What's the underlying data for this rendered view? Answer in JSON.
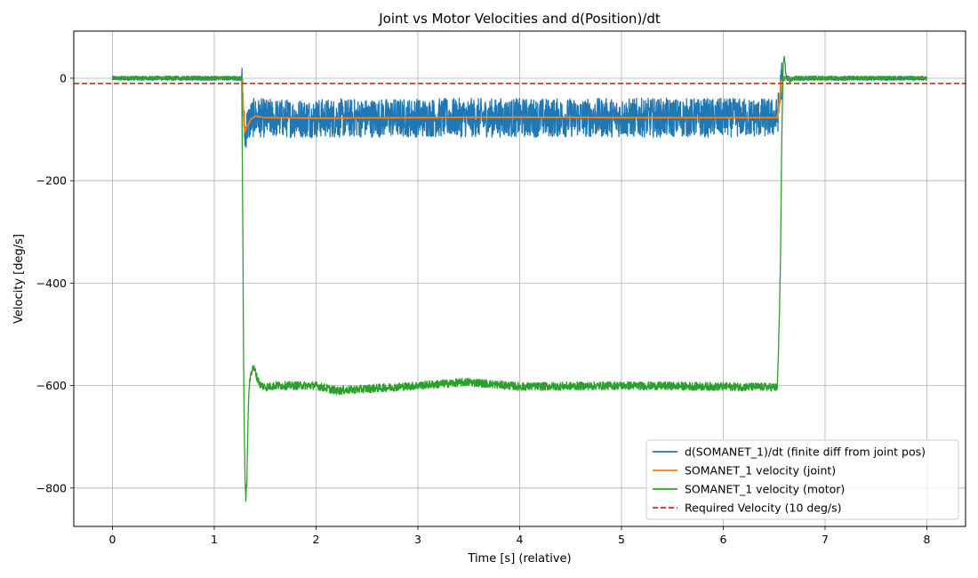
{
  "chart_data": {
    "type": "line",
    "title": "Joint vs Motor Velocities and d(Position)/dt",
    "xlabel": "Time [s] (relative)",
    "ylabel": "Velocity [deg/s]",
    "xlim": [
      -0.38,
      8.38
    ],
    "ylim": [
      -875,
      92
    ],
    "xticks": [
      0,
      1,
      2,
      3,
      4,
      5,
      6,
      7,
      8
    ],
    "yticks": [
      0,
      -200,
      -400,
      -600,
      -800
    ],
    "xtick_labels": [
      "0",
      "1",
      "2",
      "3",
      "4",
      "5",
      "6",
      "7",
      "8"
    ],
    "ytick_labels": [
      "0",
      "−200",
      "−400",
      "−600",
      "−800"
    ],
    "grid": true,
    "legend_position": "lower-right",
    "series": [
      {
        "name": "d(SOMANET_1)/dt (finite diff from joint pos)",
        "color": "#1f77b4",
        "style": "solid",
        "noise_band": 38,
        "x": [
          0.0,
          1.27,
          1.28,
          1.29,
          1.3,
          1.31,
          1.33,
          1.36,
          1.4,
          1.5,
          2.0,
          3.0,
          4.0,
          5.0,
          6.0,
          6.53,
          6.55,
          6.57,
          6.6,
          6.7,
          7.0,
          8.0
        ],
        "y": [
          0,
          0,
          -40,
          -80,
          -110,
          -100,
          -90,
          -80,
          -76,
          -78,
          -78,
          -77,
          -77,
          -77,
          -77,
          -77,
          -50,
          -5,
          0,
          0,
          0,
          0
        ]
      },
      {
        "name": "SOMANET_1 velocity (joint)",
        "color": "#ff7f0e",
        "style": "solid",
        "x": [
          0.0,
          1.27,
          1.28,
          1.29,
          1.3,
          1.31,
          1.33,
          1.36,
          1.4,
          1.5,
          2.0,
          3.0,
          4.0,
          5.0,
          6.0,
          6.53,
          6.55,
          6.57,
          6.6,
          6.7,
          7.0,
          8.0
        ],
        "y": [
          0,
          0,
          -40,
          -80,
          -105,
          -100,
          -92,
          -80,
          -74,
          -77,
          -78,
          -77,
          -76,
          -77,
          -77,
          -77,
          -50,
          -5,
          0,
          0,
          0,
          0
        ]
      },
      {
        "name": "SOMANET_1 velocity (motor)",
        "color": "#2ca02c",
        "style": "solid",
        "noise_band": 8,
        "x": [
          0.0,
          1.27,
          1.28,
          1.29,
          1.3,
          1.31,
          1.32,
          1.33,
          1.34,
          1.36,
          1.38,
          1.4,
          1.42,
          1.45,
          1.5,
          1.6,
          2.0,
          2.2,
          3.0,
          3.5,
          4.0,
          5.0,
          6.0,
          6.5,
          6.53,
          6.54,
          6.55,
          6.56,
          6.57,
          6.58,
          6.59,
          6.6,
          6.62,
          6.65,
          6.7,
          7.0,
          8.0
        ],
        "y": [
          0,
          0,
          -300,
          -600,
          -760,
          -825,
          -790,
          -680,
          -610,
          -575,
          -565,
          -570,
          -585,
          -598,
          -603,
          -600,
          -600,
          -610,
          -600,
          -593,
          -602,
          -600,
          -602,
          -603,
          -605,
          -550,
          -470,
          -385,
          -200,
          -60,
          25,
          40,
          0,
          -5,
          0,
          0,
          0
        ]
      },
      {
        "name": "Required Velocity (10 deg/s)",
        "color": "#d62728",
        "style": "dashed",
        "x": [
          -0.38,
          8.38
        ],
        "y": [
          -10,
          -10
        ]
      }
    ]
  }
}
